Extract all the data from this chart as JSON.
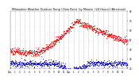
{
  "title": "Milwaukee Weather Outdoor Temp / Dew Point  by Minute  (24 Hours) (Alternate)",
  "bg_color": "#ffffff",
  "plot_bg_color": "#ffffff",
  "text_color": "#000000",
  "grid_color": "#aaaaaa",
  "red_color": "#ff0000",
  "blue_color": "#0000cc",
  "x_ticks": [
    0,
    60,
    120,
    180,
    240,
    300,
    360,
    420,
    480,
    540,
    600,
    660,
    720,
    780,
    840,
    900,
    960,
    1020,
    1080,
    1140,
    1200,
    1260,
    1320,
    1380
  ],
  "x_tick_labels": [
    "12a",
    "1",
    "2",
    "3",
    "4",
    "5",
    "6",
    "7",
    "8",
    "9",
    "10",
    "11",
    "12p",
    "1",
    "2",
    "3",
    "4",
    "5",
    "6",
    "7",
    "8",
    "9",
    "10",
    "11"
  ],
  "y_min": 20,
  "y_max": 80,
  "y_ticks": [
    20,
    30,
    40,
    50,
    60,
    70,
    80
  ],
  "num_points": 1440,
  "temp_night_start": 38,
  "temp_morning": 36,
  "temp_peak": 70,
  "temp_peak_time": 820,
  "temp_evening": 48,
  "dew_night": 25,
  "dew_morning": 24,
  "dew_afternoon_dip": 19,
  "dew_evening": 26
}
